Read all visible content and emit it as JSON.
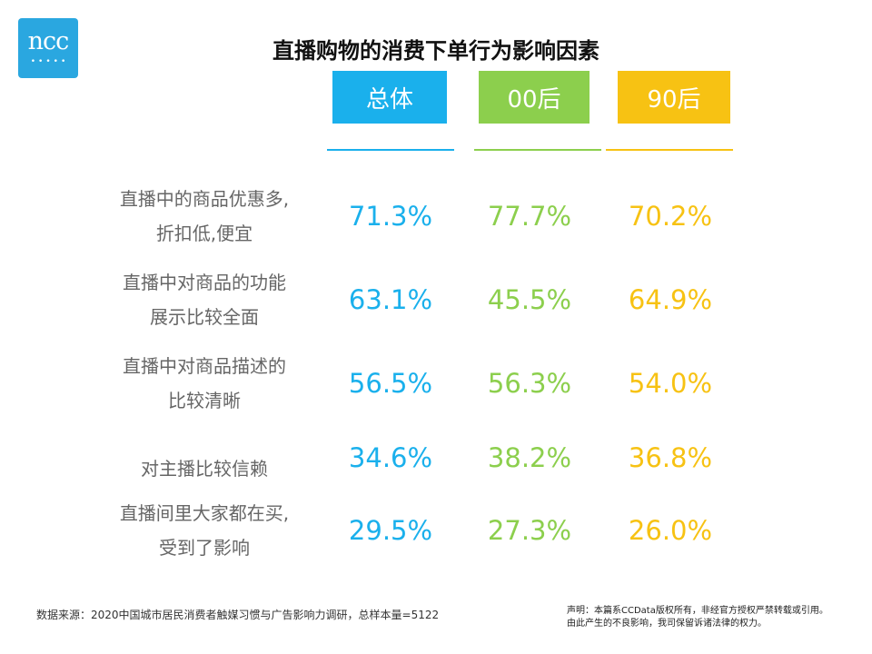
{
  "logo": {
    "text": "ncc",
    "dots": "•••••"
  },
  "chart_data": {
    "type": "table",
    "title": "直播购物的消费下单行为影响因素",
    "columns": [
      "总体",
      "00后",
      "90后"
    ],
    "colors": [
      "#1ab0ec",
      "#8ccf4d",
      "#f7c213"
    ],
    "rows": [
      {
        "label_lines": [
          "直播中的商品优惠多,",
          "折扣低,便宜"
        ],
        "values": [
          "71.3%",
          "77.7%",
          "70.2%"
        ]
      },
      {
        "label_lines": [
          "直播中对商品的功能",
          "展示比较全面"
        ],
        "values": [
          "63.1%",
          "45.5%",
          "64.9%"
        ]
      },
      {
        "label_lines": [
          "直播中对商品描述的",
          "比较清晰"
        ],
        "values": [
          "56.5%",
          "56.3%",
          "54.0%"
        ]
      },
      {
        "label_lines": [
          "对主播比较信赖"
        ],
        "values": [
          "34.6%",
          "38.2%",
          "36.8%"
        ]
      },
      {
        "label_lines": [
          "直播间里大家都在买,",
          "受到了影响"
        ],
        "values": [
          "29.5%",
          "27.3%",
          "26.0%"
        ]
      }
    ]
  },
  "footer": {
    "source": "数据来源：2020中国城市居民消费者触媒习惯与广告影响力调研，总样本量=5122",
    "disclaimer_line1": "声明：本篇系CCData版权所有，非经官方授权严禁转载或引用。",
    "disclaimer_line2": "由此产生的不良影响，我司保留诉诸法律的权力。"
  }
}
